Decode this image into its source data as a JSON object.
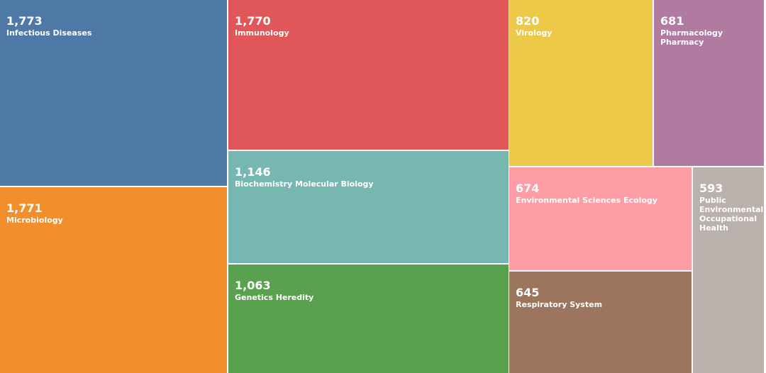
{
  "chart_data": {
    "type": "treemap",
    "categories": [
      "Infectious Diseases",
      "Microbiology",
      "Immunology",
      "Biochemistry Molecular Biology",
      "Genetics Heredity",
      "Virology",
      "Pharmacology Pharmacy",
      "Environmental Sciences Ecology",
      "Respiratory System",
      "Public Environmental Occupational Health"
    ],
    "values": [
      1773,
      1771,
      1770,
      1146,
      1063,
      820,
      681,
      674,
      645,
      593
    ],
    "value_labels": [
      "1,773",
      "1,771",
      "1,770",
      "1,146",
      "1,063",
      "820",
      "681",
      "674",
      "645",
      "593"
    ],
    "colors": [
      "#4e79a7",
      "#f28e2b",
      "#e15759",
      "#76b7b2",
      "#59a14f",
      "#edc948",
      "#b07aa1",
      "#ff9da7",
      "#9c755f",
      "#bab0ac"
    ]
  }
}
